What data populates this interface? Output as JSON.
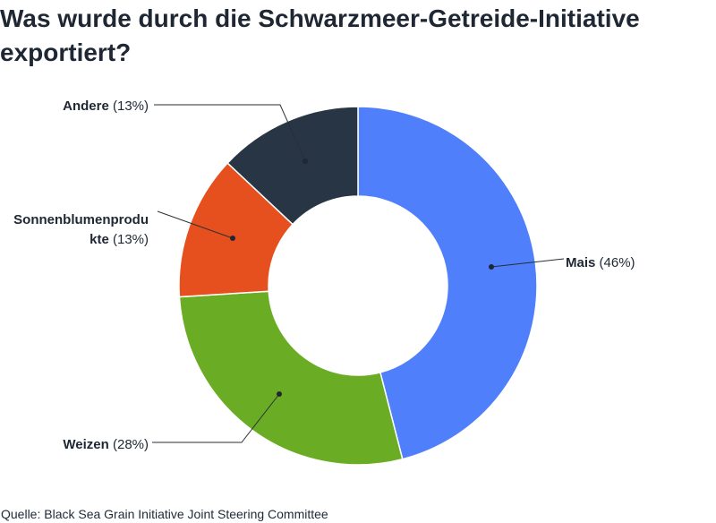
{
  "title": "Was wurde durch die Schwarzmeer-Getreide-Initiative exportiert?",
  "source": "Quelle: Black Sea Grain Initiative Joint Steering Committee",
  "chart_data": {
    "type": "pie",
    "donut": true,
    "title": "Was wurde durch die Schwarzmeer-Getreide-Initiative exportiert?",
    "categories": [
      "Mais",
      "Weizen",
      "Sonnenblumenprodukte",
      "Andere"
    ],
    "values": [
      46,
      28,
      13,
      13
    ],
    "labels": [
      {
        "name": "Mais",
        "pct": "(46%)"
      },
      {
        "name": "Weizen",
        "pct": "(28%)"
      },
      {
        "name_lines": [
          "Sonnenblumenprodu",
          "kte"
        ],
        "pct": "(13%)"
      },
      {
        "name": "Andere",
        "pct": "(13%)"
      }
    ],
    "colors": [
      "#4f7ffa",
      "#6aad24",
      "#e5501e",
      "#283544"
    ],
    "legend": "none"
  }
}
